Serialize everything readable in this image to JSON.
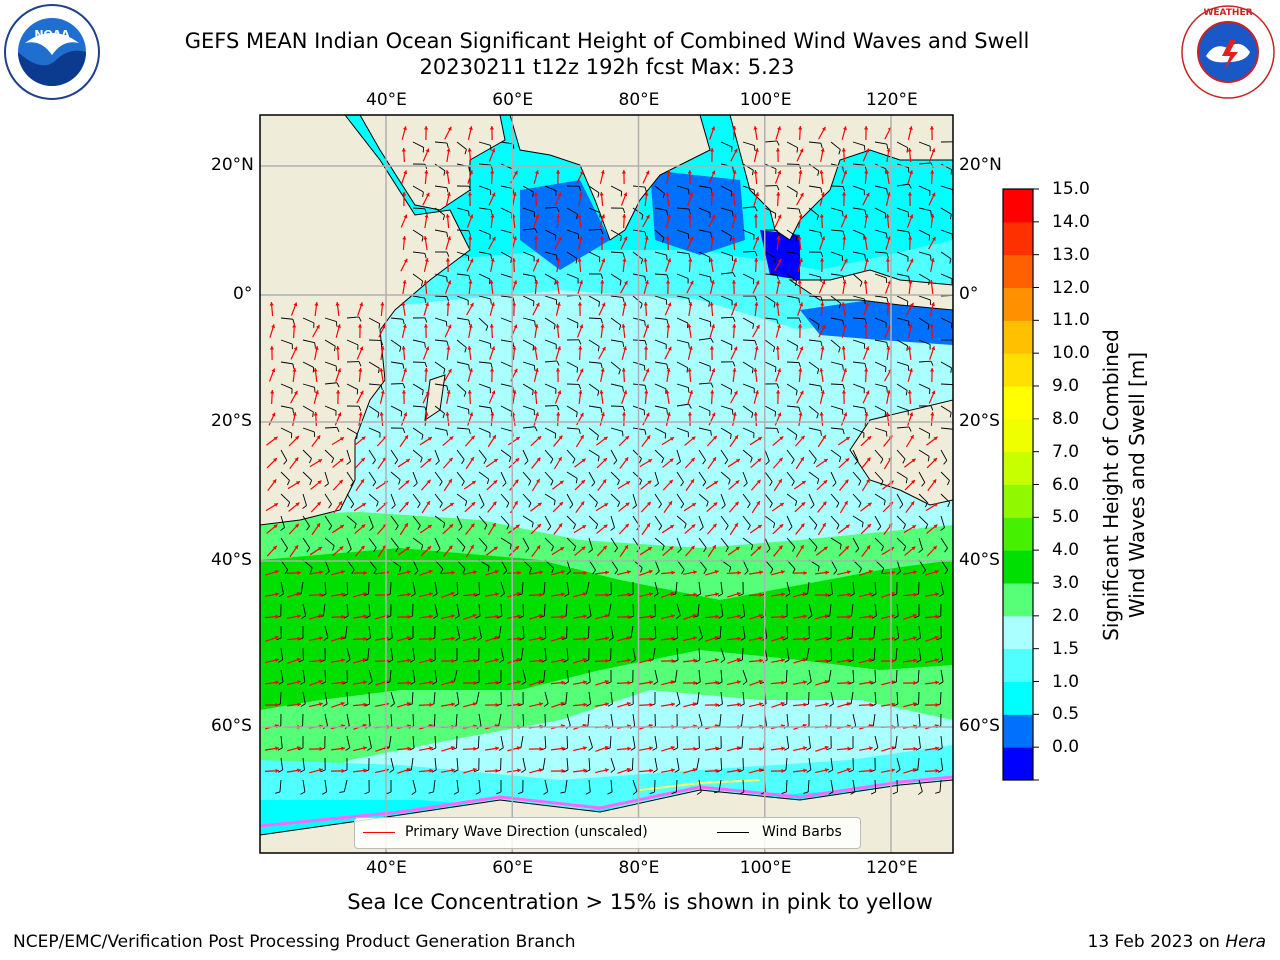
{
  "title": {
    "line1": "GEFS MEAN Indian Ocean Significant Height of Combined Wind Waves and Swell",
    "line2": "20230211 t12z 192h fcst   Max: 5.23"
  },
  "map": {
    "region": "Indian Ocean",
    "lon_range": [
      20,
      130
    ],
    "lat_range": [
      -72,
      25
    ],
    "lon_ticks": [
      "40°E",
      "60°E",
      "80°E",
      "100°E",
      "120°E"
    ],
    "lat_ticks": [
      "20°N",
      "0°",
      "20°S",
      "40°S",
      "60°S"
    ],
    "land_color": "#efedd9",
    "grid": true
  },
  "legend": {
    "primary_wave": "Primary Wave Direction (unscaled)",
    "wind_barbs": "Wind Barbs",
    "primary_wave_color": "#ff0000",
    "wind_barb_color": "#000000"
  },
  "colorbar": {
    "title_line1": "Significant Height of Combined",
    "title_line2": "Wind Waves and Swell [m]",
    "ticks": [
      "15.0",
      "14.0",
      "13.0",
      "12.0",
      "11.0",
      "10.0",
      "9.0",
      "8.0",
      "7.0",
      "6.0",
      "5.0",
      "4.0",
      "3.0",
      "2.0",
      "1.5",
      "1.0",
      "0.5",
      "0.0"
    ],
    "colors": [
      "#0000ff",
      "#0070ff",
      "#00ffff",
      "#50ffff",
      "#aaffff",
      "#55ff77",
      "#00e000",
      "#45f000",
      "#90f800",
      "#c8ff00",
      "#f0ff00",
      "#ffff00",
      "#ffe000",
      "#ffc000",
      "#ff9000",
      "#ff6000",
      "#ff3000",
      "#ff0000"
    ]
  },
  "footer": {
    "note": "Sea Ice Concentration > 15% is shown in pink to yellow",
    "credit_left": "NCEP/EMC/Verification Post Processing Product Generation Branch",
    "credit_date": "13 Feb 2023 on ",
    "credit_machine": "Hera"
  },
  "logos": {
    "left": "NOAA",
    "right": "NATIONAL WEATHER SERVICE"
  }
}
